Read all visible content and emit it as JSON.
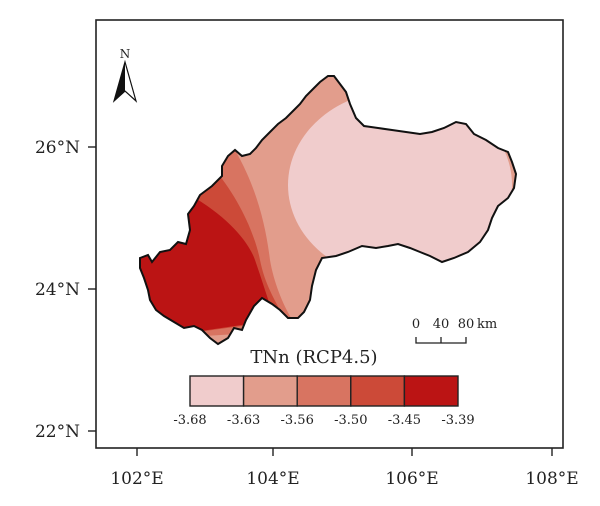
{
  "map": {
    "x_ticks": [
      "102°E",
      "104°E",
      "106°E",
      "108°E"
    ],
    "y_ticks": [
      "26°N",
      "24°N",
      "22°N"
    ],
    "north_label": "N",
    "scale_bar": {
      "labels": [
        "0",
        "40",
        "80"
      ],
      "unit": "km"
    }
  },
  "legend": {
    "title": "TNn (RCP4.5)",
    "breaks": [
      "-3.68",
      "-3.63",
      "-3.56",
      "-3.50",
      "-3.45",
      "-3.39"
    ],
    "colors": [
      "#f0cccc",
      "#e29d8c",
      "#d87461",
      "#cc4a38",
      "#bb1414"
    ]
  }
}
